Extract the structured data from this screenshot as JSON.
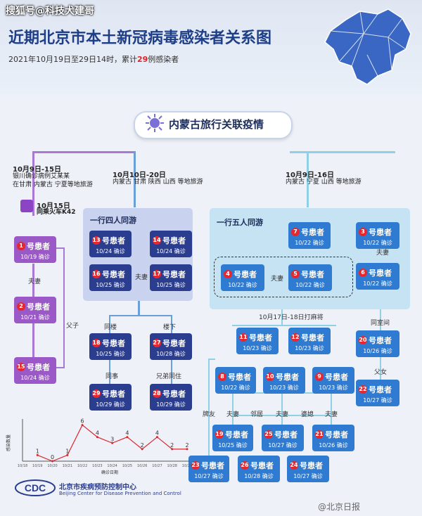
{
  "watermark": "搜狐号@科技犬建哥",
  "title": "近期北京市本土新冠病毒感染者关系图",
  "subtitle": {
    "prefix": "2021年10月19日至29日14时，累计",
    "count": "29",
    "suffix": "例感染者"
  },
  "banner": "内蒙古旅行关联疫情",
  "branches": {
    "left": {
      "date": "10月9日-15日",
      "desc1": "银川确诊病例艾某某",
      "desc2": "在甘肃 内蒙古 宁夏等地旅游",
      "train_date": "10月15日",
      "train_desc": "同乘火车K42"
    },
    "middle": {
      "date": "10月10日-20日",
      "desc": "内蒙古 甘肃 陕西 山西 等地旅游"
    },
    "right": {
      "date": "10月9日-16日",
      "desc": "内蒙古 宁夏 山西 等地旅游"
    }
  },
  "groups": {
    "four": "一行四人同游",
    "five": "一行五人同游",
    "mahjong": "10月17日-18日打麻将"
  },
  "confirm": "确诊",
  "patients": {
    "p1": {
      "n": "1",
      "name": "号患者",
      "date": "10/19"
    },
    "p2": {
      "n": "2",
      "name": "号患者",
      "date": "10/21"
    },
    "p3": {
      "n": "3",
      "name": "号患者",
      "date": "10/22"
    },
    "p4": {
      "n": "4",
      "name": "号患者",
      "date": "10/22"
    },
    "p5": {
      "n": "5",
      "name": "号患者",
      "date": "10/22"
    },
    "p6": {
      "n": "6",
      "name": "号患者",
      "date": "10/22"
    },
    "p7": {
      "n": "7",
      "name": "号患者",
      "date": "10/22"
    },
    "p8": {
      "n": "8",
      "name": "号患者",
      "date": "10/22"
    },
    "p9": {
      "n": "9",
      "name": "号患者",
      "date": "10/23"
    },
    "p10": {
      "n": "10",
      "name": "号患者",
      "date": "10/23"
    },
    "p11": {
      "n": "11",
      "name": "号患者",
      "date": "10/23"
    },
    "p12": {
      "n": "12",
      "name": "号患者",
      "date": "10/23"
    },
    "p13": {
      "n": "13",
      "name": "号患者",
      "date": "10/24"
    },
    "p14": {
      "n": "14",
      "name": "号患者",
      "date": "10/24"
    },
    "p15": {
      "n": "15",
      "name": "号患者",
      "date": "10/24"
    },
    "p16": {
      "n": "16",
      "name": "号患者",
      "date": "10/25"
    },
    "p17": {
      "n": "17",
      "name": "号患者",
      "date": "10/25"
    },
    "p18": {
      "n": "18",
      "name": "号患者",
      "date": "10/25"
    },
    "p19": {
      "n": "19",
      "name": "号患者",
      "date": "10/25"
    },
    "p20": {
      "n": "20",
      "name": "号患者",
      "date": "10/26"
    },
    "p21": {
      "n": "21",
      "name": "号患者",
      "date": "10/26"
    },
    "p22": {
      "n": "22",
      "name": "号患者",
      "date": "10/27"
    },
    "p23": {
      "n": "23",
      "name": "号患者",
      "date": "10/27"
    },
    "p24": {
      "n": "24",
      "name": "号患者",
      "date": "10/27"
    },
    "p25": {
      "n": "25",
      "name": "号患者",
      "date": "10/27"
    },
    "p26": {
      "n": "26",
      "name": "号患者",
      "date": "10/28"
    },
    "p27": {
      "n": "27",
      "name": "号患者",
      "date": "10/28"
    },
    "p28": {
      "n": "28",
      "name": "号患者",
      "date": "10/29"
    },
    "p29": {
      "n": "29",
      "name": "号患者",
      "date": "10/29"
    }
  },
  "relations": {
    "spouse": "夫妻",
    "father_son": "父子",
    "same_building": "同楼",
    "downstairs": "楼下",
    "colleague": "同事",
    "siblings_live": "兄弟同住",
    "same_room": "同室间",
    "father_daughter": "父女",
    "friend": "牌友",
    "neighbor": "邻居",
    "mother_in_law": "婆媳"
  },
  "chart_data": {
    "type": "line",
    "x": [
      "10/18",
      "10/19",
      "10/20",
      "10/21",
      "10/22",
      "10/23",
      "10/24",
      "10/25",
      "10/26",
      "10/27",
      "10/28",
      "10/29"
    ],
    "values": [
      null,
      1,
      0,
      1,
      6,
      4,
      3,
      4,
      2,
      4,
      2,
      2
    ],
    "ylabel": "感染数量",
    "xlabel": "确诊日期",
    "ylim": [
      0,
      7
    ],
    "line_color": "#d9262b"
  },
  "footer": {
    "org_zh": "北京市疾病预防控制中心",
    "org_en": "Beijing Center for Disease Prevention and Control",
    "logo": "CDC",
    "source": "@北京日报"
  },
  "colors": {
    "purple": "#9b59c7",
    "navy": "#2b3d8f",
    "blue": "#2f7bd1",
    "badge": "#e8262d"
  }
}
